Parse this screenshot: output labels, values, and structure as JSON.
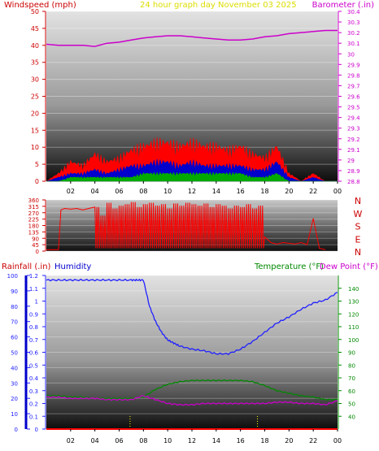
{
  "header": {
    "windspeed_label": "Windspeed (mph)",
    "title": "24 hour graph day   November 03 2025",
    "barometer_label": "Barometer (.in)"
  },
  "bottom_header": {
    "rainfall_label": "Rainfall (.in)",
    "humidity_label": "Humidity",
    "temperature_label": "Temperature (°F)",
    "dewpoint_label": "Dew Point (°F)"
  },
  "direction_letters": [
    "N",
    "W",
    "S",
    "E",
    "N"
  ],
  "colors": {
    "windspeed_text": "#cc0000",
    "title_text": "#dddd00",
    "barometer": "#cc00cc",
    "humidity": "#2020ff",
    "temperature": "#008800",
    "rainfall_axis": "#0000cc",
    "gust": "#ff0000",
    "avg_wind": "#0000cc",
    "low_wind": "#00aa00"
  },
  "chart_data": [
    {
      "type": "line",
      "title": "24 hour graph day   November 03 2025",
      "x_ticks": [
        "02",
        "04",
        "06",
        "08",
        "10",
        "12",
        "14",
        "16",
        "18",
        "20",
        "22",
        "00"
      ],
      "xlim": [
        0,
        24
      ],
      "left_axis": {
        "label": "Windspeed (mph)",
        "ylim": [
          0,
          50
        ],
        "ticks": [
          0,
          5,
          10,
          15,
          20,
          25,
          30,
          35,
          40,
          45,
          50
        ]
      },
      "right_axis": {
        "label": "Barometer (.in)",
        "ylim": [
          28.8,
          30.4
        ],
        "ticks": [
          "28.8",
          "28.9",
          "29",
          "29.1",
          "29.2",
          "29.3",
          "29.4",
          "29.5",
          "29.6",
          "29.7",
          "29.8",
          "29.9",
          "30",
          "30.1",
          "30.2",
          "30.3",
          "30.4"
        ]
      },
      "series": [
        {
          "name": "Barometer (.in)",
          "axis": "right",
          "x": [
            0,
            1,
            2,
            3,
            4,
            5,
            6,
            7,
            8,
            9,
            10,
            11,
            12,
            13,
            14,
            15,
            16,
            17,
            18,
            19,
            20,
            21,
            22,
            23,
            24
          ],
          "values": [
            30.09,
            30.08,
            30.08,
            30.08,
            30.07,
            30.1,
            30.11,
            30.13,
            30.15,
            30.16,
            30.17,
            30.17,
            30.16,
            30.15,
            30.14,
            30.13,
            30.13,
            30.14,
            30.16,
            30.17,
            30.19,
            30.2,
            30.21,
            30.22,
            30.22
          ]
        },
        {
          "name": "Wind gust",
          "axis": "left",
          "x": [
            0,
            1,
            2,
            3,
            4,
            5,
            6,
            7,
            8,
            9,
            10,
            11,
            12,
            13,
            14,
            15,
            16,
            17,
            18,
            19,
            20,
            21,
            22,
            23,
            24
          ],
          "values": [
            0,
            2,
            5,
            4,
            7,
            5,
            6,
            8,
            9,
            10,
            10,
            9,
            10,
            9,
            9,
            8,
            9,
            7,
            6,
            9,
            2,
            0,
            2,
            0,
            0
          ]
        },
        {
          "name": "Average wind",
          "axis": "left",
          "x": [
            0,
            1,
            2,
            3,
            4,
            5,
            6,
            7,
            8,
            9,
            10,
            11,
            12,
            13,
            14,
            15,
            16,
            17,
            18,
            19,
            20,
            21,
            22,
            23,
            24
          ],
          "values": [
            0,
            1,
            2,
            2,
            3,
            2,
            3,
            4,
            4,
            5,
            5,
            4,
            5,
            4,
            4,
            4,
            4,
            3,
            3,
            5,
            1,
            0,
            1,
            0,
            0
          ]
        },
        {
          "name": "Low wind",
          "axis": "left",
          "x": [
            0,
            1,
            2,
            3,
            4,
            5,
            6,
            7,
            8,
            9,
            10,
            11,
            12,
            13,
            14,
            15,
            16,
            17,
            18,
            19,
            20,
            21,
            22,
            23,
            24
          ],
          "values": [
            0,
            0,
            1,
            1,
            1,
            1,
            1,
            1,
            2,
            2,
            2,
            2,
            2,
            2,
            2,
            2,
            2,
            1,
            1,
            2,
            0,
            0,
            0,
            0,
            0
          ]
        }
      ]
    },
    {
      "type": "scatter",
      "x_ticks": [
        "02",
        "04",
        "06",
        "08",
        "10",
        "12",
        "14",
        "16",
        "18",
        "20",
        "22",
        "00"
      ],
      "xlim": [
        0,
        24
      ],
      "y_ticks": [
        0,
        45,
        90,
        135,
        180,
        225,
        270,
        315,
        360
      ],
      "ylim": [
        0,
        360
      ],
      "right_labels": [
        "N",
        "W",
        "S",
        "E",
        "N"
      ],
      "series": [
        {
          "name": "Wind direction",
          "x": [
            0,
            0.5,
            1,
            1.2,
            1.5,
            2,
            2.5,
            3,
            3.5,
            4,
            4.5,
            5,
            5.5,
            6,
            6.5,
            7,
            7.5,
            8,
            8.5,
            9,
            9.5,
            10,
            10.5,
            11,
            11.5,
            12,
            12.5,
            13,
            13.5,
            14,
            14.5,
            15,
            15.5,
            16,
            16.5,
            17,
            17.5,
            18,
            18.5,
            19,
            19.5,
            20,
            20.5,
            21,
            21.5,
            22,
            22.5,
            23
          ],
          "values": [
            10,
            10,
            10,
            290,
            300,
            295,
            300,
            290,
            300,
            310,
            250,
            340,
            300,
            320,
            330,
            345,
            310,
            330,
            340,
            320,
            330,
            300,
            335,
            320,
            340,
            330,
            320,
            335,
            310,
            330,
            320,
            300,
            320,
            310,
            330,
            300,
            320,
            100,
            60,
            50,
            60,
            55,
            50,
            60,
            45,
            230,
            20,
            10
          ]
        }
      ]
    },
    {
      "type": "line",
      "x_ticks": [
        "02",
        "04",
        "06",
        "08",
        "10",
        "12",
        "14",
        "16",
        "18",
        "20",
        "22",
        "00"
      ],
      "xlim": [
        0,
        24
      ],
      "axes": {
        "humidity": {
          "label": "Humidity",
          "ylim": [
            0,
            100
          ],
          "ticks": [
            0,
            10,
            20,
            30,
            40,
            50,
            60,
            70,
            80,
            90,
            100
          ]
        },
        "rainfall": {
          "label": "Rainfall (.in)",
          "ylim": [
            0,
            1.2
          ],
          "ticks": [
            "0",
            "0.1",
            "0.2",
            "0.3",
            "0.4",
            "0.5",
            "0.6",
            "0.7",
            "0.8",
            "0.9",
            "1",
            "1.1",
            "1.2"
          ]
        },
        "temperature": {
          "label": "Temperature (°F)",
          "ylim": [
            30,
            150
          ],
          "ticks": [
            40,
            50,
            60,
            70,
            80,
            90,
            100,
            110,
            120,
            130,
            140
          ]
        }
      },
      "series": [
        {
          "name": "Humidity",
          "axis": "humidity",
          "x": [
            0,
            1,
            2,
            3,
            4,
            5,
            6,
            7,
            7.5,
            8,
            8.5,
            9,
            9.5,
            10,
            10.5,
            11,
            12,
            13,
            14,
            15,
            16,
            17,
            18,
            19,
            20,
            21,
            22,
            23,
            24
          ],
          "values": [
            97,
            97,
            97,
            97,
            97,
            97,
            97,
            97,
            97,
            97,
            80,
            70,
            63,
            58,
            56,
            54,
            52,
            51,
            49,
            49,
            52,
            57,
            63,
            69,
            73,
            78,
            82,
            84,
            89
          ]
        },
        {
          "name": "Temperature (°F)",
          "axis": "temperature",
          "x": [
            0,
            1,
            2,
            3,
            4,
            5,
            6,
            7,
            8,
            9,
            10,
            11,
            12,
            13,
            14,
            15,
            16,
            17,
            18,
            19,
            20,
            21,
            22,
            23,
            24
          ],
          "values": [
            56,
            56,
            55,
            55,
            54,
            54,
            54,
            54,
            55,
            61,
            65,
            67,
            68,
            68,
            68,
            68,
            68,
            67,
            64,
            60,
            58,
            56,
            55,
            53,
            53
          ]
        },
        {
          "name": "Dew Point (°F)",
          "axis": "temperature",
          "x": [
            0,
            1,
            2,
            3,
            4,
            5,
            6,
            7,
            8,
            9,
            10,
            11,
            12,
            13,
            14,
            15,
            16,
            17,
            18,
            19,
            20,
            21,
            22,
            23,
            24
          ],
          "values": [
            55,
            55,
            54,
            54,
            54,
            53,
            53,
            53,
            56,
            53,
            50,
            49,
            49,
            50,
            50,
            50,
            50,
            50,
            50,
            51,
            51,
            50,
            50,
            49,
            52
          ]
        },
        {
          "name": "Rainfall (.in)",
          "axis": "rainfall",
          "x": [
            0,
            24
          ],
          "values": [
            0,
            0
          ]
        }
      ]
    }
  ]
}
